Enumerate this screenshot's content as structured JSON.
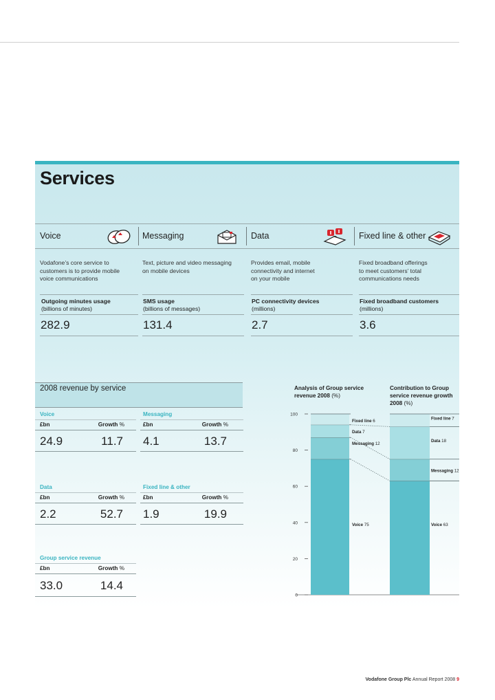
{
  "title": "Services",
  "services": [
    {
      "name": "Voice",
      "icon": "speech-bubbles-icon",
      "desc": [
        "Vodafone’s core service to",
        "customers is to provide mobile",
        "voice communications"
      ],
      "metric_label": "Outgoing minutes usage",
      "metric_unit": "(billions of minutes)",
      "metric_value": "282.9"
    },
    {
      "name": "Messaging",
      "icon": "envelope-icon",
      "desc": [
        "Text, picture and video messaging",
        "on mobile devices"
      ],
      "metric_label": "SMS usage",
      "metric_unit": "(billions of messages)",
      "metric_value": "131.4"
    },
    {
      "name": "Data",
      "icon": "laptop-connect-icon",
      "desc": [
        "Provides email, mobile",
        "connectivity and internet",
        "on your mobile"
      ],
      "metric_label": "PC connectivity devices",
      "metric_unit": "(millions)",
      "metric_value": "2.7"
    },
    {
      "name": "Fixed line & other",
      "icon": "router-icon",
      "desc": [
        "Fixed broadband offerings",
        "to meet customers’ total",
        "communications needs"
      ],
      "metric_label": "Fixed broadband customers",
      "metric_unit": "(millions)",
      "metric_value": "3.6"
    }
  ],
  "revenue": {
    "heading": "2008 revenue by service",
    "col_currency": "£bn",
    "col_growth_label": "Growth",
    "col_growth_unit": "%",
    "blocks": [
      {
        "category": "Voice",
        "bn": "24.9",
        "growth": "11.7"
      },
      {
        "category": "Messaging",
        "bn": "4.1",
        "growth": "13.7"
      },
      {
        "category": "Data",
        "bn": "2.2",
        "growth": "52.7"
      },
      {
        "category": "Fixed line & other",
        "bn": "1.9",
        "growth": "19.9"
      },
      {
        "category": "Group service revenue",
        "bn": "33.0",
        "growth": "14.4"
      }
    ]
  },
  "chart_data": {
    "type": "bar",
    "stacked": true,
    "title_left": "Analysis of Group service revenue 2008",
    "title_left_unit": "(%)",
    "title_right": "Contribution to Group service revenue growth 2008",
    "title_right_unit": "(%)",
    "categories": [
      "Analysis of Group service revenue 2008 (%)",
      "Contribution to Group service revenue growth 2008 (%)"
    ],
    "series": [
      {
        "name": "Voice",
        "values": [
          75,
          63
        ],
        "color": "#5bbfcb"
      },
      {
        "name": "Messaging",
        "values": [
          12,
          12
        ],
        "color": "#84cfd6"
      },
      {
        "name": "Data",
        "values": [
          7,
          18
        ],
        "color": "#a9dfe4"
      },
      {
        "name": "Fixed line",
        "values": [
          6,
          7
        ],
        "color": "#cdebee"
      }
    ],
    "ylim": [
      0,
      100
    ],
    "yticks": [
      0,
      20,
      40,
      60,
      80,
      100
    ],
    "connectors": "dotted"
  },
  "footer": {
    "company": "Vodafone Group Plc",
    "report": "Annual Report 2008",
    "page": "9"
  }
}
